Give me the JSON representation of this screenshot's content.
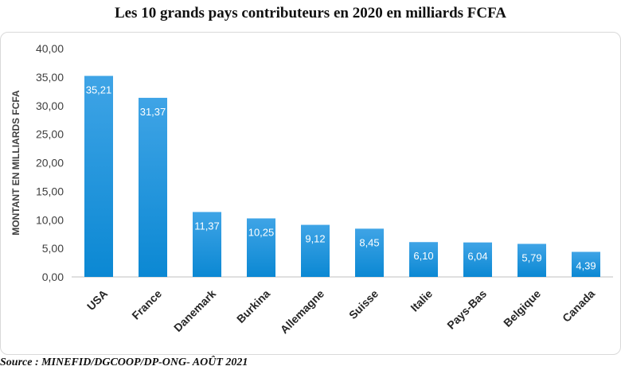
{
  "chart_data": {
    "type": "bar",
    "title": "Les 10 grands pays contributeurs en 2020 en milliards FCFA",
    "xlabel": "",
    "ylabel": "MONTANT EN MILLIARDS FCFA",
    "categories": [
      "USA",
      "France",
      "Danemark",
      "Burkina",
      "Allemagne",
      "Suisse",
      "Italie",
      "Pays-Bas",
      "Belgique",
      "Canada"
    ],
    "values": [
      35.21,
      31.37,
      11.37,
      10.25,
      9.12,
      8.45,
      6.1,
      6.04,
      5.79,
      4.39
    ],
    "value_labels": [
      "35,21",
      "31,37",
      "11,37",
      "10,25",
      "9,12",
      "8,45",
      "6,10",
      "6,04",
      "5,79",
      "4,39"
    ],
    "ylim": [
      0,
      40
    ],
    "yticks": [
      "0,00",
      "5,00",
      "10,00",
      "15,00",
      "20,00",
      "25,00",
      "30,00",
      "35,00",
      "40,00"
    ],
    "grid": false,
    "legend": "none",
    "bar_color_top": "#3fa4e6",
    "bar_color_bottom": "#0b88d3"
  },
  "source": "Source : MINEFID/DGCOOP/DP-ONG- AOÛT 2021"
}
